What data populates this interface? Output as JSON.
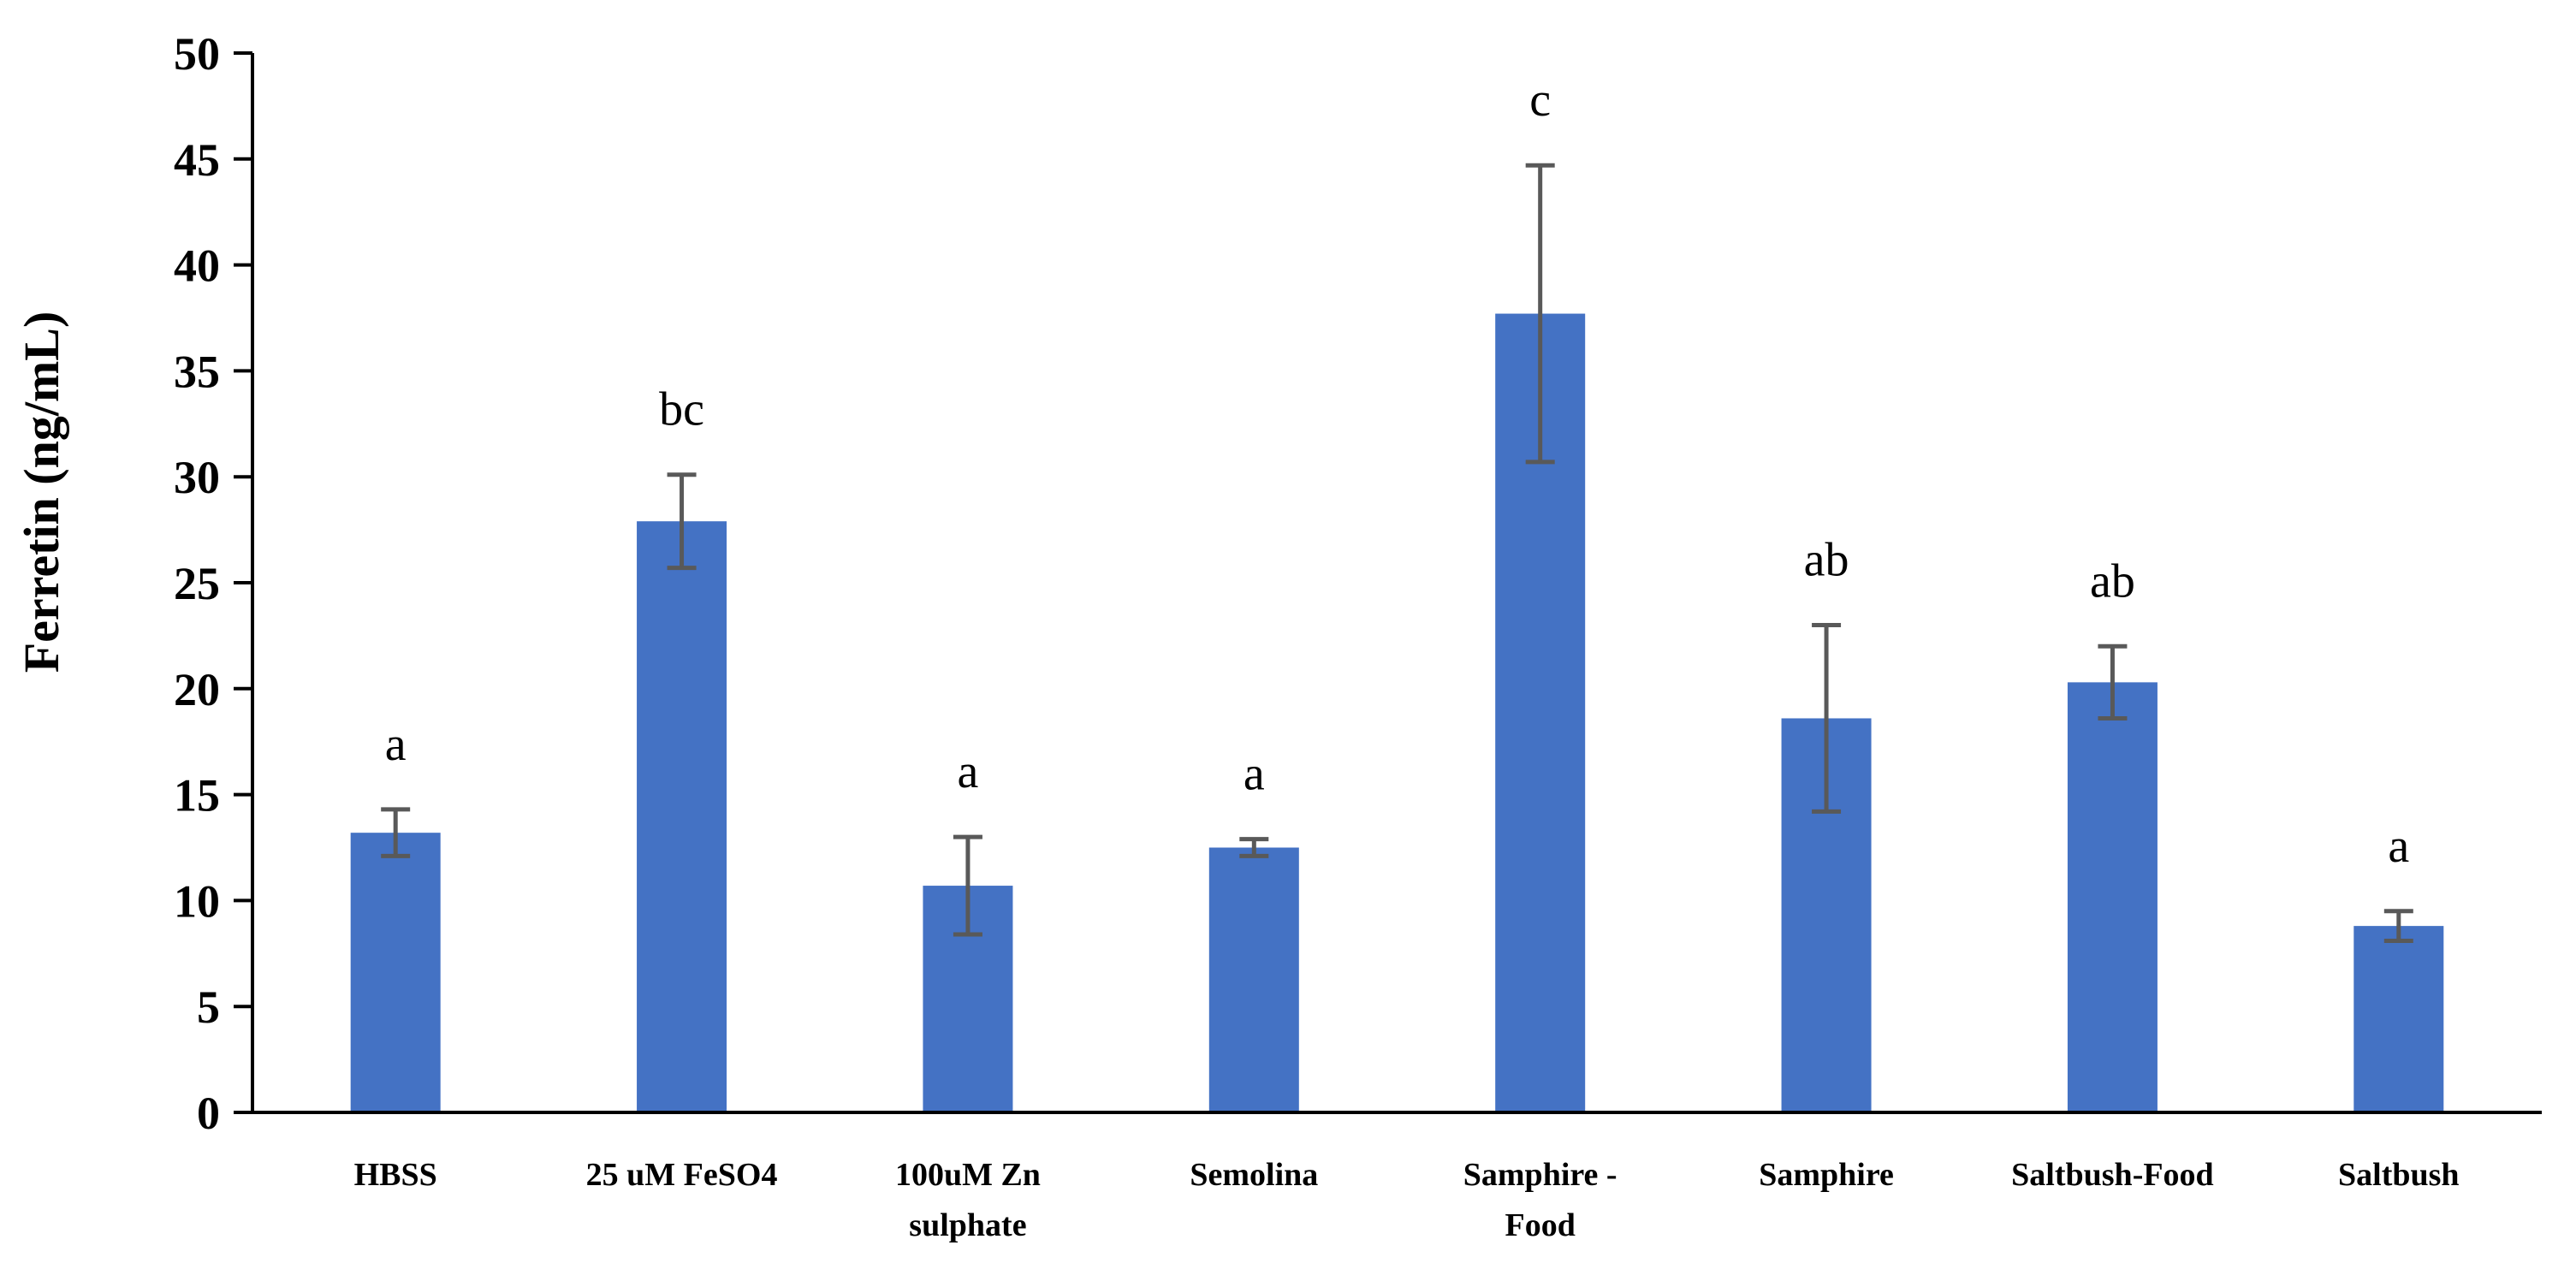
{
  "chart_data": {
    "type": "bar",
    "title": "",
    "xlabel": "",
    "ylabel": "Ferretin (ng/mL)",
    "ylim": [
      0,
      50
    ],
    "yticks": [
      0,
      5,
      10,
      15,
      20,
      25,
      30,
      35,
      40,
      45,
      50
    ],
    "grid": false,
    "bar_color": "#4472C4",
    "error_color": "#595959",
    "categories": [
      [
        "HBSS"
      ],
      [
        "25 uM FeSO4"
      ],
      [
        "100uM Zn",
        "sulphate"
      ],
      [
        "Semolina"
      ],
      [
        "Samphire -",
        "Food"
      ],
      [
        "Samphire"
      ],
      [
        "Saltbush-Food"
      ],
      [
        "Saltbush"
      ]
    ],
    "values": [
      13.2,
      27.9,
      10.7,
      12.5,
      37.7,
      18.6,
      20.3,
      8.8
    ],
    "errors": [
      1.1,
      2.2,
      2.3,
      0.4,
      7.0,
      4.4,
      1.7,
      0.7
    ],
    "significance": [
      "a",
      "bc",
      "a",
      "a",
      "c",
      "ab",
      "ab",
      "a"
    ]
  }
}
